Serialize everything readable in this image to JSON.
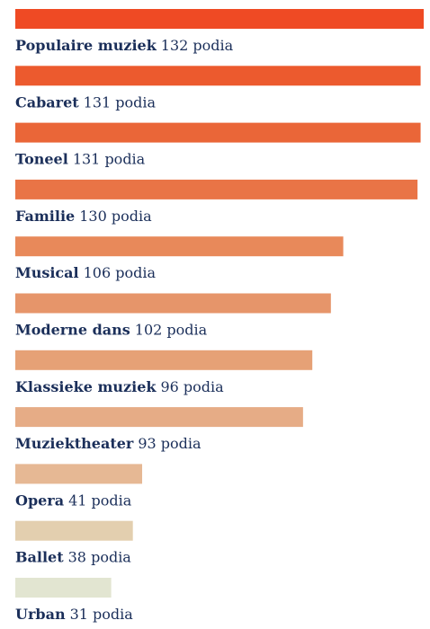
{
  "chart_data": {
    "type": "bar",
    "orientation": "horizontal",
    "categories": [
      "Populaire muziek",
      "Cabaret",
      "Toneel",
      "Familie",
      "Musical",
      "Moderne dans",
      "Klassieke muziek",
      "Muziektheater",
      "Opera",
      "Ballet",
      "Urban"
    ],
    "values": [
      132,
      131,
      131,
      130,
      106,
      102,
      96,
      93,
      41,
      38,
      31
    ],
    "value_labels": [
      "132 podia",
      "131 podia",
      "131 podia",
      "130 podia",
      "106 podia",
      "102 podia",
      "96 podia",
      "93 podia",
      "41 podia",
      "38 podia",
      "31 podia"
    ],
    "colors": [
      "#ef4a24",
      "#ec5a2e",
      "#ea6638",
      "#e97446",
      "#e8895a",
      "#e6956a",
      "#e6a176",
      "#e6ac86",
      "#e6b894",
      "#e3cfaf",
      "#e2e5d1"
    ],
    "xlim": [
      0,
      132
    ]
  }
}
